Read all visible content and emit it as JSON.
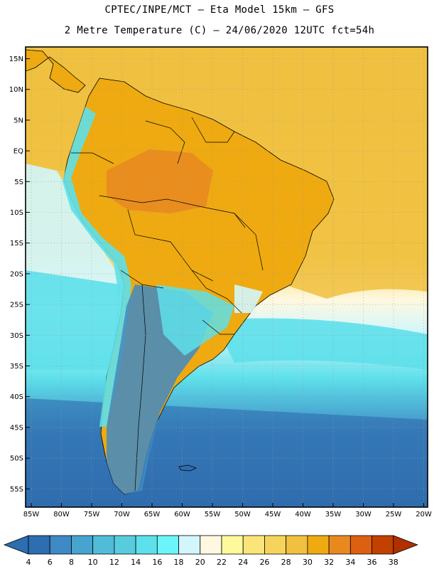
{
  "title_line1": "CPTEC/INPE/MCT –   Eta Model 15km – GFS",
  "title_line2": "2 Metre Temperature (C) – 24/06/2020 12UTC fct=54h",
  "lat_labels": [
    "15N",
    "10N",
    "5N",
    "EQ",
    "5S",
    "10S",
    "15S",
    "20S",
    "25S",
    "30S",
    "35S",
    "40S",
    "45S",
    "50S",
    "55S"
  ],
  "lon_labels": [
    "85W",
    "80W",
    "75W",
    "70W",
    "65W",
    "60W",
    "55W",
    "50W",
    "45W",
    "40W",
    "35W",
    "30W",
    "25W",
    "20W"
  ],
  "colorbar": {
    "labels": [
      "4",
      "6",
      "8",
      "10",
      "12",
      "14",
      "16",
      "18",
      "20",
      "22",
      "24",
      "26",
      "28",
      "30",
      "32",
      "34",
      "36",
      "38"
    ],
    "colors": [
      "#2d6db0",
      "#3f89c4",
      "#46a4cf",
      "#50bcd8",
      "#58cbde",
      "#5ee0ea",
      "#6bf5fa",
      "#d2f6fc",
      "#fff8e0",
      "#fef99c",
      "#fbe57a",
      "#f6d45c",
      "#f0c040",
      "#eeaa10",
      "#e88920",
      "#dc6010",
      "#c24000",
      "#b03000"
    ]
  },
  "colors": {
    "deep_blue": "#2f6cae",
    "mid_blue": "#3f89c4",
    "cyan": "#5ee0ea",
    "pale_blue": "#d2f6fc",
    "cream": "#fff8e0",
    "yellow": "#f6d45c",
    "gold": "#f0c040",
    "orange": "#eeaa10",
    "dark_orange": "#e88920"
  }
}
